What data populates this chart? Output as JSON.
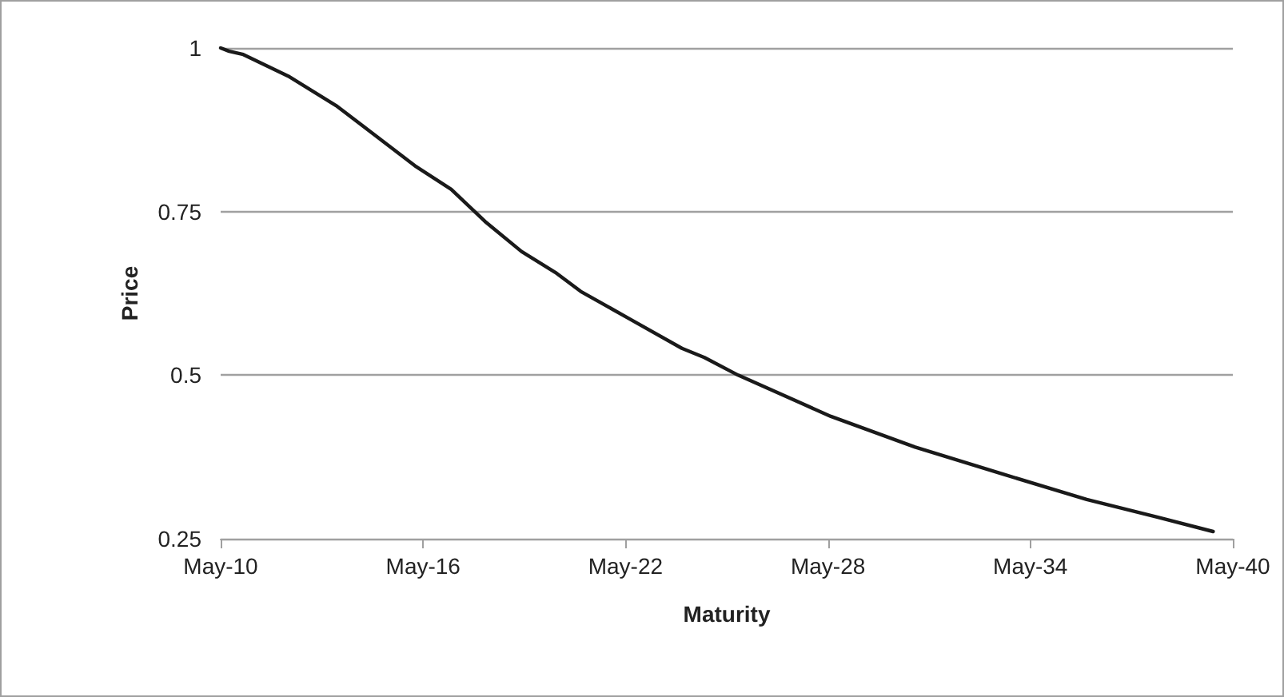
{
  "chart_data": {
    "type": "line",
    "xlabel": "Maturity",
    "ylabel": "Price",
    "x": [
      "2010-05",
      "2010-08",
      "2011-01",
      "2012-05",
      "2013-10",
      "2014-09",
      "2016-02",
      "2017-03",
      "2018-03",
      "2019-04",
      "2020-04",
      "2021-01",
      "2022-06",
      "2024-01",
      "2024-09",
      "2025-09",
      "2028-06",
      "2030-12",
      "2033-07",
      "2036-01",
      "2038-02",
      "2039-10"
    ],
    "series": [
      {
        "color": "#1a1a1a",
        "values": [
          1.0,
          0.995,
          0.99,
          0.957,
          0.912,
          0.876,
          0.82,
          0.784,
          0.735,
          0.689,
          0.657,
          0.628,
          0.587,
          0.541,
          0.527,
          0.5,
          0.437,
          0.39,
          0.349,
          0.31,
          0.283,
          0.261
        ]
      }
    ],
    "xlim": [
      "2010-05",
      "2040-05"
    ],
    "xticks": [
      {
        "value": "2010-05",
        "label": "May-10"
      },
      {
        "value": "2016-05",
        "label": "May-16"
      },
      {
        "value": "2022-05",
        "label": "May-22"
      },
      {
        "value": "2028-05",
        "label": "May-28"
      },
      {
        "value": "2034-05",
        "label": "May-34"
      },
      {
        "value": "2040-05",
        "label": "May-40"
      }
    ],
    "ylim": [
      0.25,
      1
    ],
    "yticks": [
      0.25,
      0.5,
      0.75,
      1
    ],
    "grid": "y",
    "marker": "none",
    "line_style": "solid"
  }
}
